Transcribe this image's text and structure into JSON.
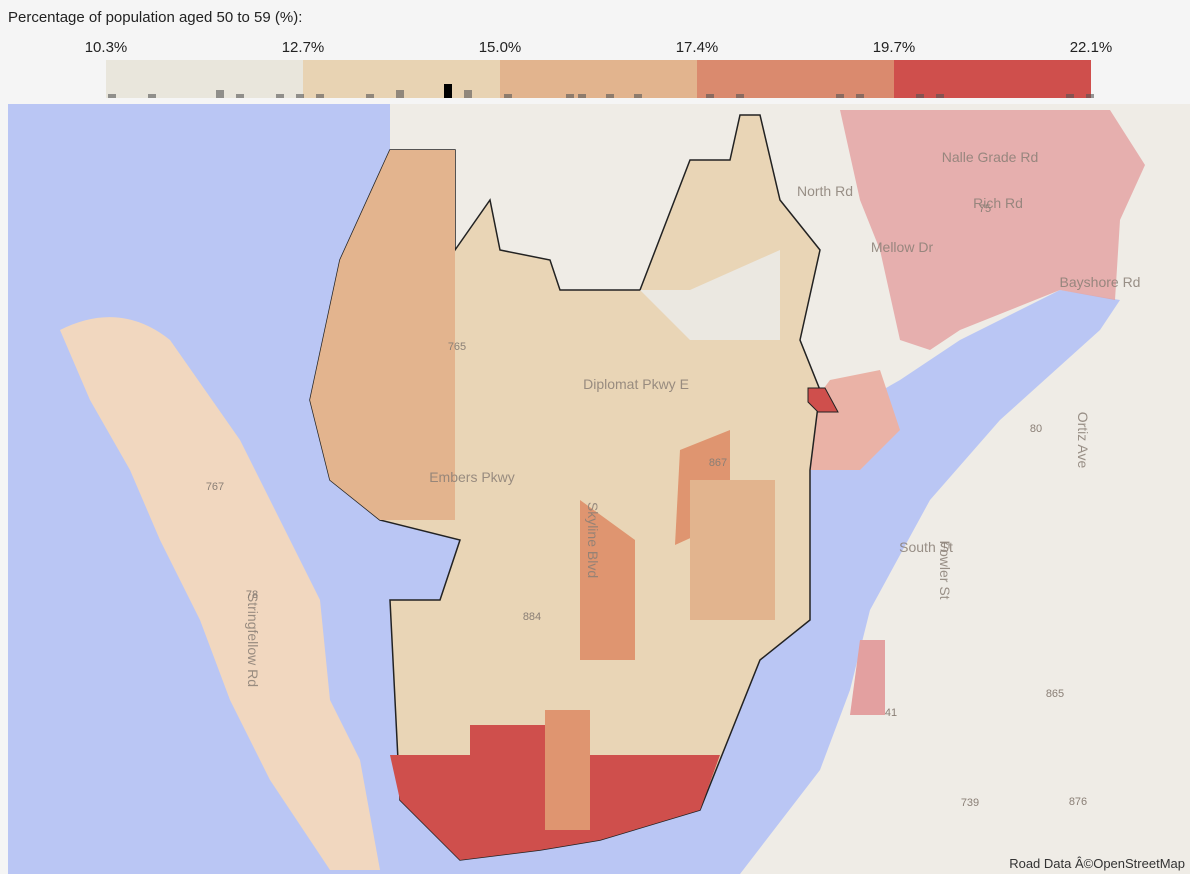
{
  "legend": {
    "title": "Percentage of population aged 50 to 59 (%):",
    "ticks": [
      "10.3%",
      "12.7%",
      "15.0%",
      "17.4%",
      "19.7%",
      "22.1%"
    ],
    "colors": [
      "#e9e6dc",
      "#e8d3b3",
      "#e2b48e",
      "#da8a6e",
      "#cf4f4c"
    ]
  },
  "map": {
    "road_labels": [
      "Nalle Grade Rd",
      "North Rd",
      "Rich Rd",
      "Mellow Dr",
      "Bayshore Rd",
      "Diplomat Pkwy E",
      "Embers Pkwy",
      "South St",
      "Stringfellow Rd",
      "Skyline Blvd",
      "Fowler St",
      "Ortiz Ave",
      "767",
      "78",
      "884",
      "765",
      "867",
      "41",
      "865",
      "739",
      "876",
      "80",
      "75"
    ],
    "attribution": "Road Data Â©OpenStreetMap"
  }
}
